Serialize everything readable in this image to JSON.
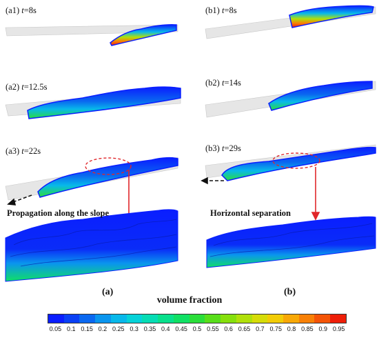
{
  "panels": {
    "a1": {
      "label": "(a1) ",
      "t": "t",
      "value": "=8s"
    },
    "a2": {
      "label": "(a2) ",
      "t": "t",
      "value": "=12.5s"
    },
    "a3": {
      "label": "(a3) ",
      "t": "t",
      "value": "=22s"
    },
    "b1": {
      "label": "(b1) ",
      "t": "t",
      "value": "=8s"
    },
    "b2": {
      "label": "(b2) ",
      "t": "t",
      "value": "=14s"
    },
    "b3": {
      "label": "(b3) ",
      "t": "t",
      "value": "=29s"
    }
  },
  "captions": {
    "left": "Propagation along the slope",
    "right": "Horizontal separation"
  },
  "subfigures": {
    "a": "(a)",
    "b": "(b)"
  },
  "colorbar": {
    "title": "volume fraction",
    "ticks": [
      "0.05",
      "0.1",
      "0.15",
      "0.2",
      "0.25",
      "0.3",
      "0.35",
      "0.4",
      "0.45",
      "0.5",
      "0.55",
      "0.6",
      "0.65",
      "0.7",
      "0.75",
      "0.8",
      "0.85",
      "0.9",
      "0.95"
    ],
    "colors": [
      "#0a1eff",
      "#0a40f5",
      "#0a68f0",
      "#0a95ee",
      "#08b8ea",
      "#06d2d8",
      "#06dcb4",
      "#08e08c",
      "#10e064",
      "#2ade3a",
      "#58de1a",
      "#86e00c",
      "#b0e00a",
      "#d6dc08",
      "#f2cc06",
      "#f8a806",
      "#f88006",
      "#f45406",
      "#ee1e08"
    ],
    "arrow_color": "#e0262a",
    "ellipse_color": "#e0262a"
  }
}
